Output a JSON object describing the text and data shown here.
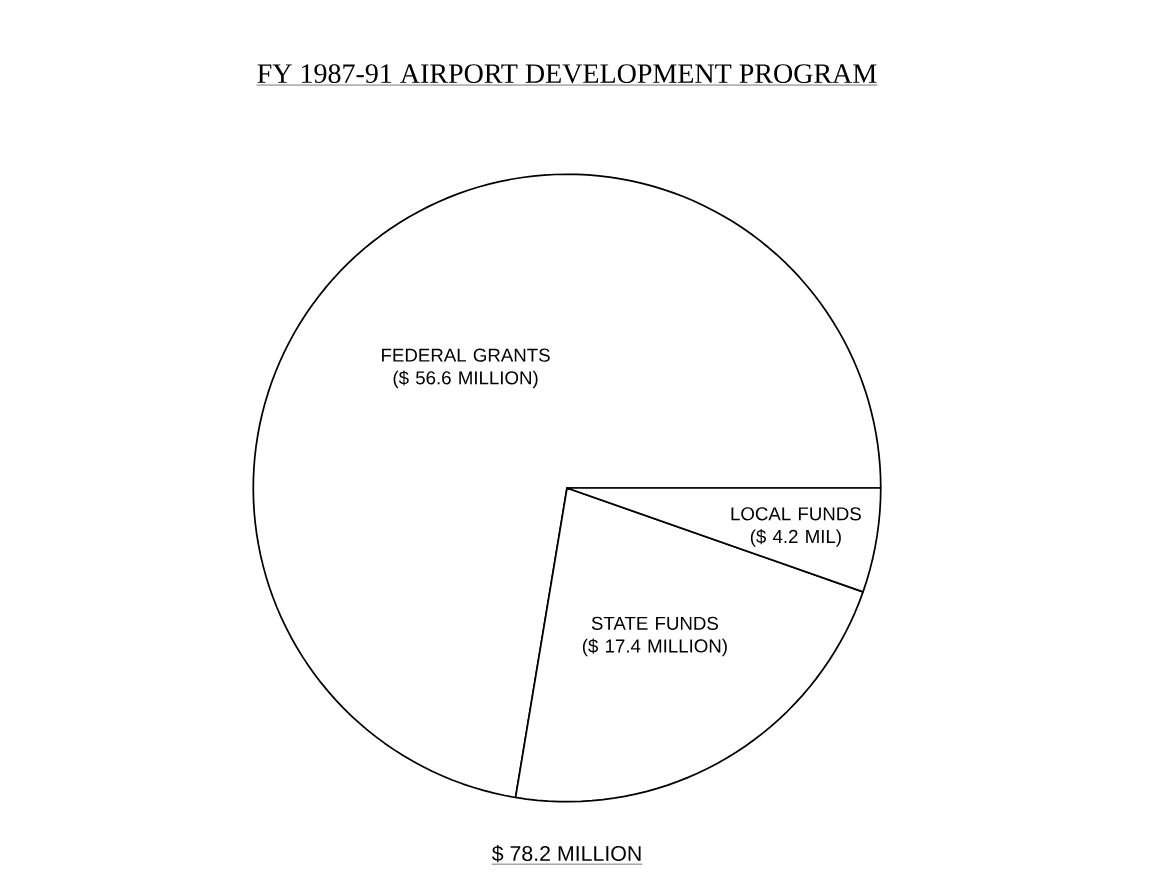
{
  "chart_data": {
    "type": "pie",
    "title": "FY 1987-91 AIRPORT DEVELOPMENT PROGRAM",
    "categories": [
      "FEDERAL GRANTS ($ 56.6 MILLION)",
      "STATE FUNDS ($ 17.4 MILLION)",
      "LOCAL FUNDS ($ 4.2 MIL)"
    ],
    "values": [
      56.6,
      17.4,
      4.2
    ],
    "colors": [
      "#ffffff",
      "#ffffff",
      "#ffffff"
    ],
    "annotations": [
      "$ 78.2 MILLION"
    ]
  }
}
